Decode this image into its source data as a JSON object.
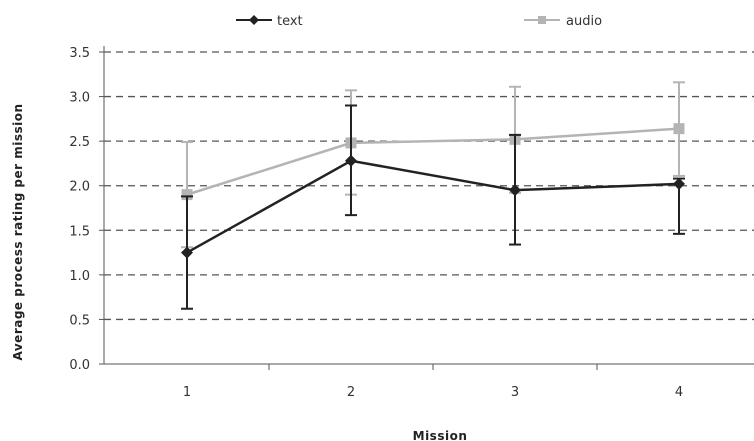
{
  "chart_data": {
    "type": "line",
    "title": "",
    "xlabel": "Mission",
    "ylabel": "Average process rating per mission",
    "categories": [
      "1",
      "2",
      "3",
      "4"
    ],
    "ylim": [
      0,
      3.5
    ],
    "yticks": [
      "0.0",
      "0.5",
      "1.0",
      "1.5",
      "2.0",
      "2.5",
      "3.0",
      "3.5"
    ],
    "grid": true,
    "legend": "top",
    "series": [
      {
        "name": "text",
        "color": "#222222",
        "marker": "diamond",
        "values": [
          1.25,
          2.28,
          1.95,
          2.02
        ],
        "error_low": [
          0.62,
          1.67,
          1.34,
          1.46
        ],
        "error_high": [
          1.88,
          2.9,
          2.57,
          2.08
        ]
      },
      {
        "name": "audio",
        "color": "#b4b4b4",
        "marker": "square",
        "values": [
          1.9,
          2.48,
          2.52,
          2.64
        ],
        "error_low": [
          1.31,
          1.9,
          1.92,
          2.11
        ],
        "error_high": [
          2.49,
          3.07,
          3.11,
          3.16
        ]
      }
    ]
  }
}
